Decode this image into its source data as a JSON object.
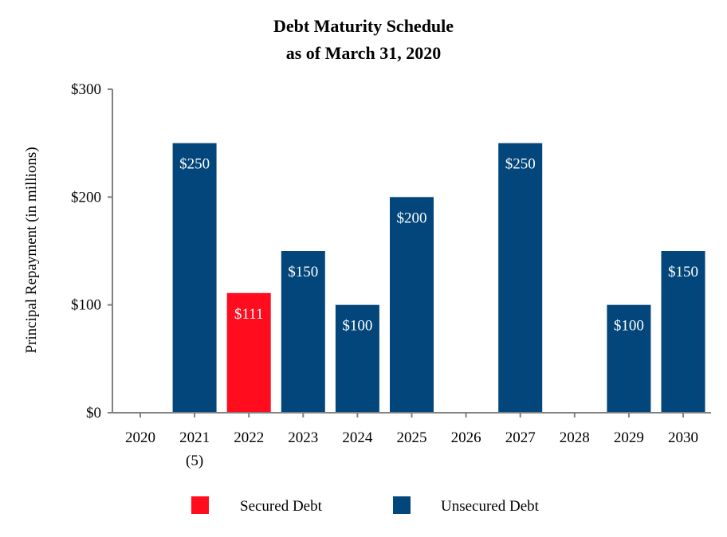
{
  "chart_data": {
    "type": "bar",
    "title": "Debt Maturity Schedule",
    "subtitle": "as of March 31, 2020",
    "ylabel": "Principal Repayment (in millions)",
    "xlabel": "",
    "ylim": [
      0,
      300
    ],
    "yticks": [
      0,
      100,
      200,
      300
    ],
    "ytick_labels": [
      "$0",
      "$100",
      "$200",
      "$300"
    ],
    "categories": [
      "2020",
      "2021",
      "2022",
      "2023",
      "2024",
      "2025",
      "2026",
      "2027",
      "2028",
      "2029",
      "2030"
    ],
    "category_footnotes": [
      "",
      "(5)",
      "",
      "",
      "",
      "",
      "",
      "",
      "",
      "",
      ""
    ],
    "series": [
      {
        "name": "Secured Debt",
        "color": "#ff0d1e",
        "values": [
          0,
          0,
          111,
          0,
          0,
          0,
          0,
          0,
          0,
          0,
          0
        ]
      },
      {
        "name": "Unsecured Debt",
        "color": "#03467b",
        "values": [
          0,
          250,
          0,
          150,
          100,
          200,
          0,
          250,
          0,
          100,
          150
        ]
      }
    ],
    "value_labels": [
      "",
      "$250",
      "$111",
      "$150",
      "$100",
      "$200",
      "",
      "$250",
      "",
      "$100",
      "$150"
    ],
    "legend_position": "bottom",
    "grid": false
  }
}
